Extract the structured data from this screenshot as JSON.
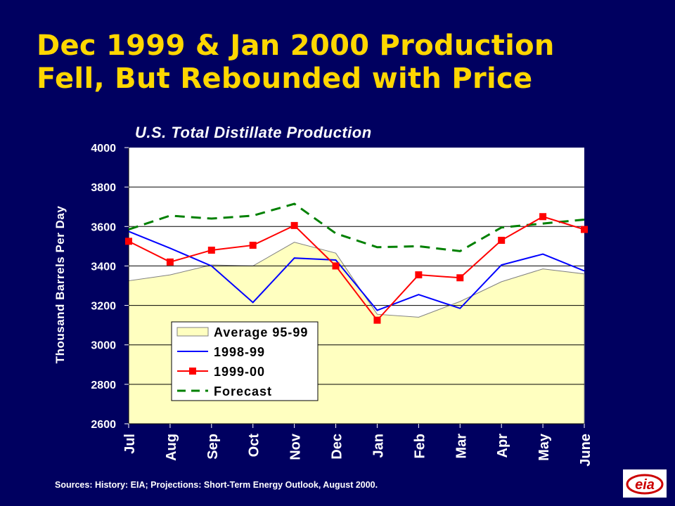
{
  "slide": {
    "title_line1": "Dec 1999 & Jan 2000 Production",
    "title_line2": "Fell, But Rebounded with Price",
    "sources": "Sources: History:  EIA;  Projections: Short-Term Energy Outlook, August 2000.",
    "logo_text": "eia"
  },
  "colors": {
    "background": "#000060",
    "title": "#FFD700",
    "plot_area": "#FFFFFF",
    "average_fill": "#FFFFC0",
    "series_1998": "#0000FF",
    "series_1999": "#FF0000",
    "forecast": "#008000"
  },
  "chart_data": {
    "type": "line",
    "title": "U.S. Total Distillate  Production",
    "ylabel": "Thousand Barrels Per Day",
    "xlabel": "",
    "ylim": [
      2600,
      4000
    ],
    "yticks": [
      2600,
      2800,
      3000,
      3200,
      3400,
      3600,
      3800,
      4000
    ],
    "grid": true,
    "legend_position": "inside-bottom-left",
    "categories": [
      "Jul",
      "Aug",
      "Sep",
      "Oct",
      "Nov",
      "Dec",
      "Jan",
      "Feb",
      "Mar",
      "Apr",
      "May",
      "June"
    ],
    "series": [
      {
        "name": "Average 95-99",
        "kind": "area",
        "values": [
          3325,
          3355,
          3405,
          3400,
          3520,
          3465,
          3155,
          3140,
          3220,
          3320,
          3385,
          3360
        ]
      },
      {
        "name": "1998-99",
        "kind": "line",
        "values": [
          3575,
          3490,
          3400,
          3215,
          3440,
          3430,
          3175,
          3255,
          3185,
          3405,
          3460,
          3375
        ]
      },
      {
        "name": "1999-00",
        "kind": "line-markers",
        "values": [
          3525,
          3420,
          3480,
          3505,
          3605,
          3400,
          3125,
          3355,
          3340,
          3530,
          3650,
          3585
        ]
      },
      {
        "name": "Forecast",
        "kind": "dashed",
        "values": [
          3585,
          3655,
          3640,
          3655,
          3715,
          3565,
          3495,
          3500,
          3475,
          3595,
          3615,
          3635
        ]
      }
    ]
  }
}
